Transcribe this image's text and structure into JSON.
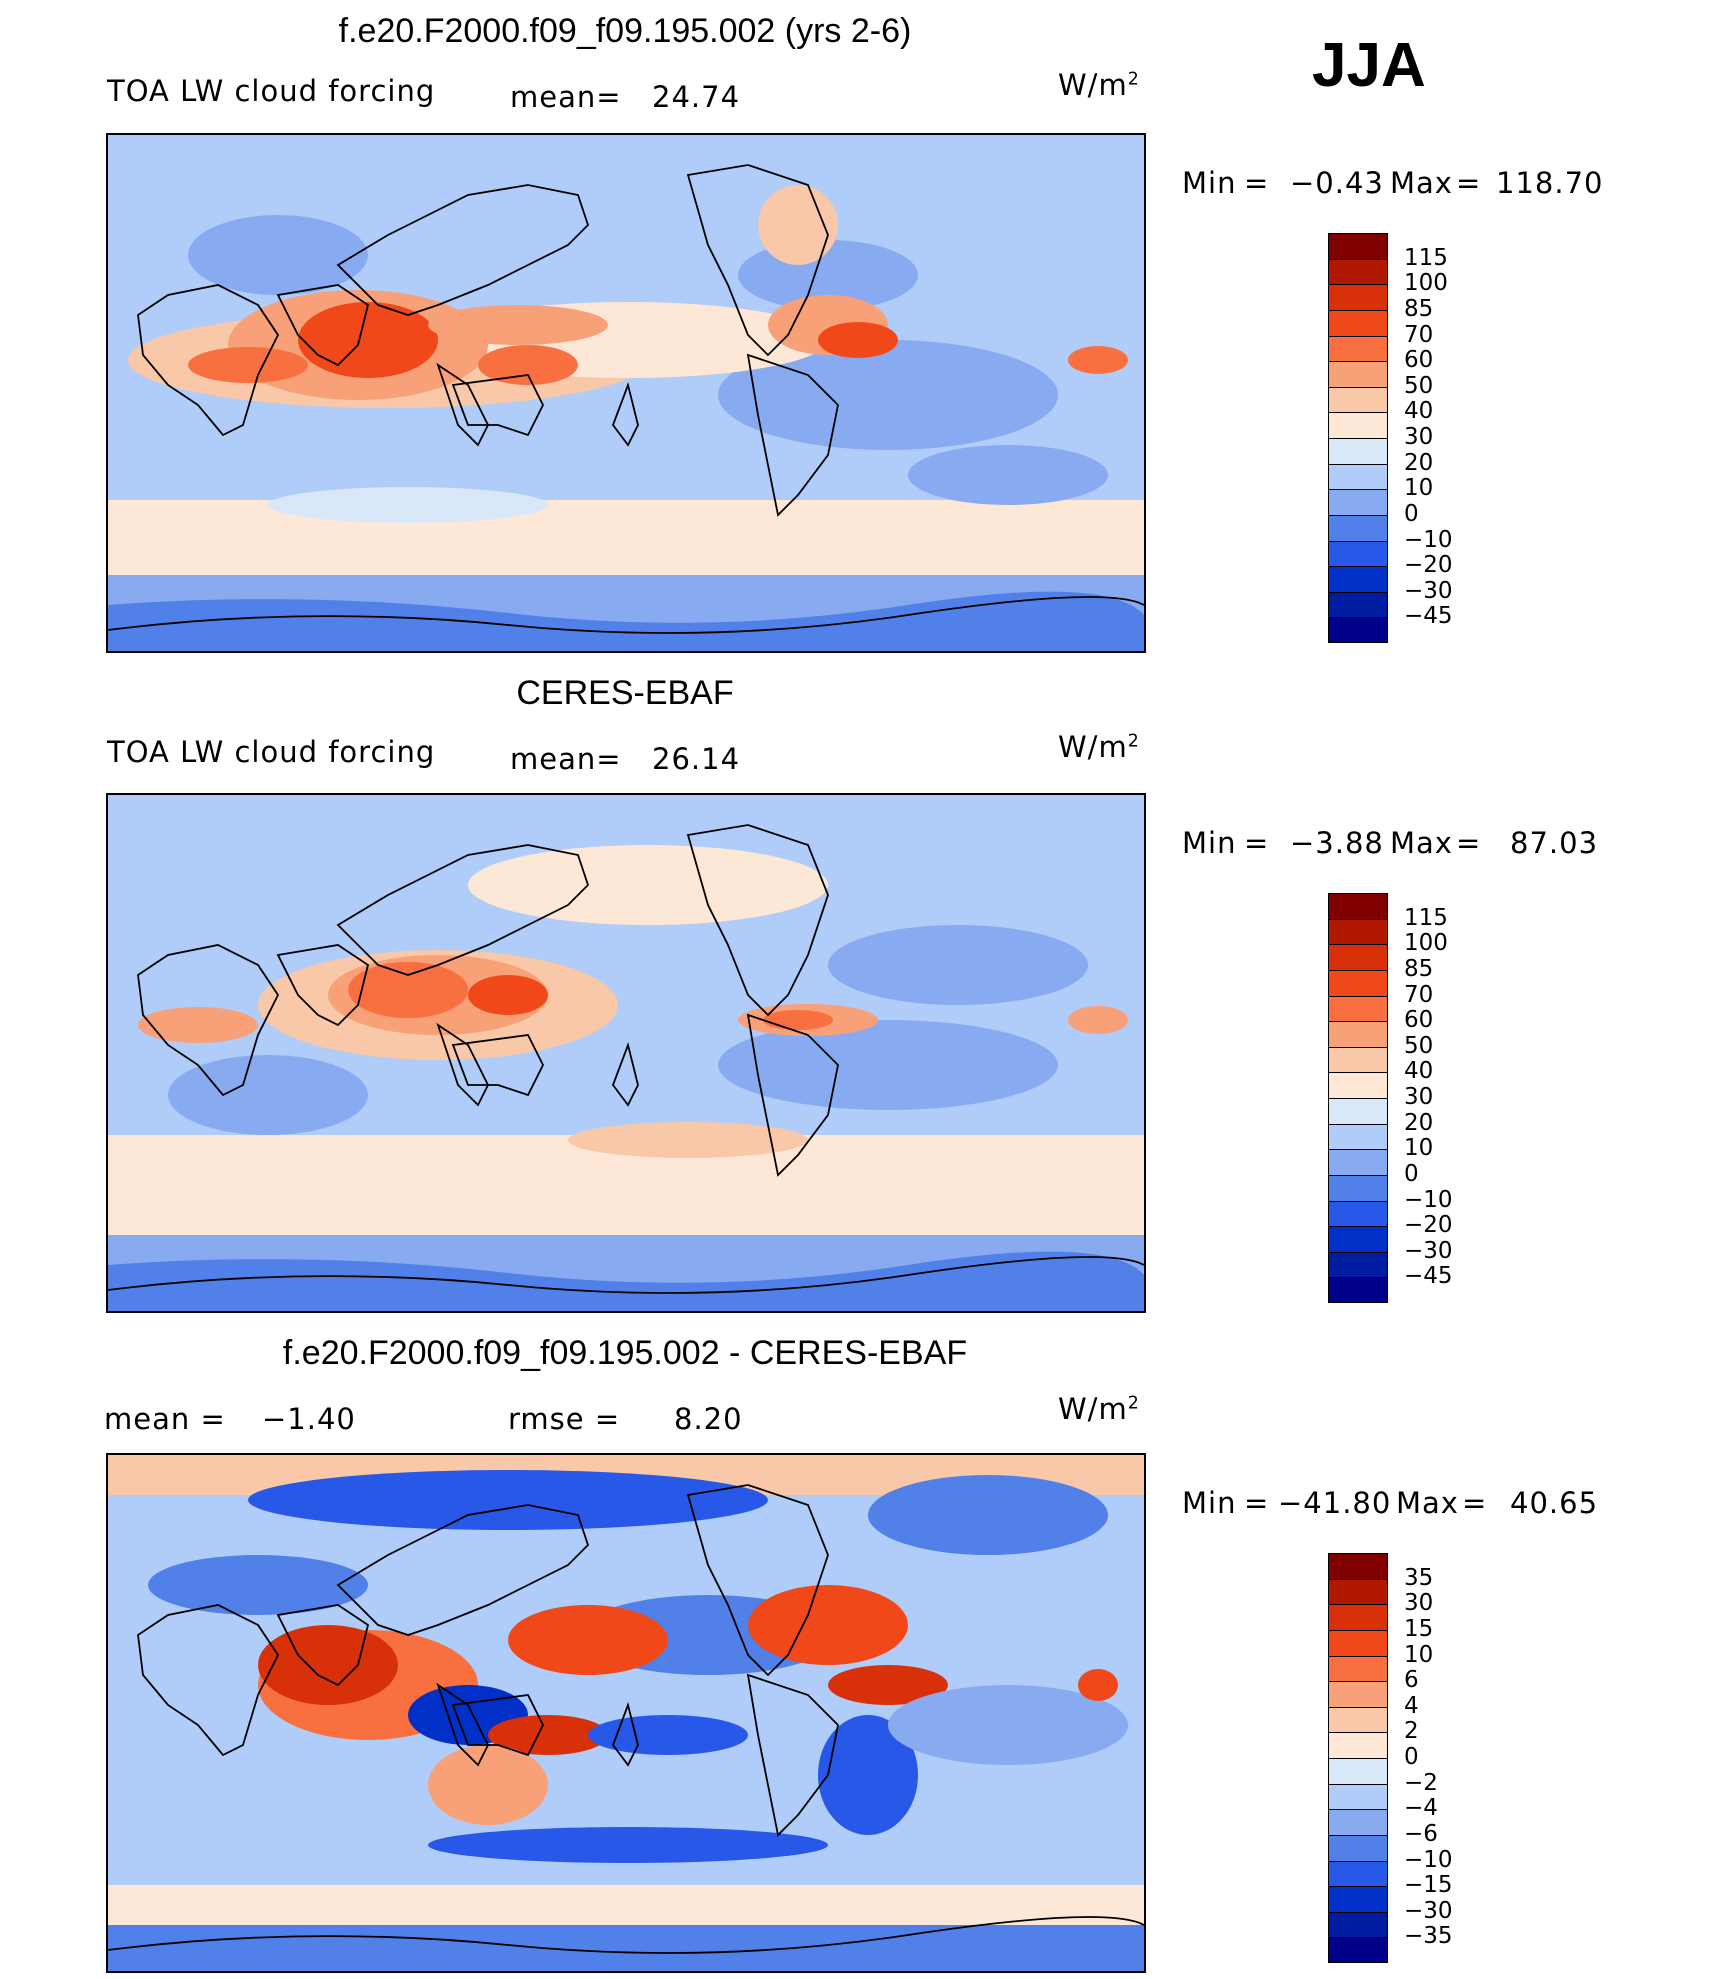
{
  "season": "JJA",
  "panels": [
    {
      "title": "f.e20.F2000.f09_f09.195.002 (yrs 2-6)",
      "left_label": "TOA LW cloud forcing",
      "mid_label": "mean=",
      "mid_value": "24.74",
      "units": "W/m",
      "units_sup": "2",
      "min_label": "Min",
      "min_value": "−0.43",
      "max_label": "Max",
      "max_value": "118.70",
      "levels": [
        "115",
        "100",
        "85",
        "70",
        "60",
        "50",
        "40",
        "30",
        "20",
        "10",
        "0",
        "−10",
        "−20",
        "−30",
        "−45"
      ]
    },
    {
      "title": "CERES-EBAF",
      "left_label": "TOA LW cloud forcing",
      "mid_label": "mean=",
      "mid_value": "26.14",
      "units": "W/m",
      "units_sup": "2",
      "min_label": "Min",
      "min_value": "−3.88",
      "max_label": "Max",
      "max_value": "87.03",
      "levels": [
        "115",
        "100",
        "85",
        "70",
        "60",
        "50",
        "40",
        "30",
        "20",
        "10",
        "0",
        "−10",
        "−20",
        "−30",
        "−45"
      ]
    },
    {
      "title": "f.e20.F2000.f09_f09.195.002 - CERES-EBAF",
      "left_label": "mean =",
      "left_value": "−1.40",
      "mid_label": "rmse =",
      "mid_value": "8.20",
      "units": "W/m",
      "units_sup": "2",
      "min_label": "Min",
      "min_value": "−41.80",
      "max_label": "Max",
      "max_value": "40.65",
      "levels": [
        "35",
        "30",
        "15",
        "10",
        "6",
        "4",
        "2",
        "0",
        "−2",
        "−4",
        "−6",
        "−10",
        "−15",
        "−30",
        "−35"
      ]
    }
  ],
  "colors": {
    "abs_scale": [
      "#800000",
      "#b01800",
      "#d83008",
      "#f04818",
      "#f87040",
      "#f8a078",
      "#f8c8a8",
      "#fde8d8",
      "#d8e8f8",
      "#b0ccf8",
      "#88aaf0",
      "#5080e8",
      "#2858e8",
      "#0030c8",
      "#001ca0",
      "#00008c"
    ],
    "diff_scale": [
      "#800000",
      "#b01800",
      "#d83008",
      "#f04818",
      "#f87040",
      "#f8a078",
      "#f8c8a8",
      "#fde8d8",
      "#d8e8f8",
      "#b0ccf8",
      "#88aaf0",
      "#5080e8",
      "#2858e8",
      "#0030c8",
      "#001ca0",
      "#00008c"
    ]
  }
}
